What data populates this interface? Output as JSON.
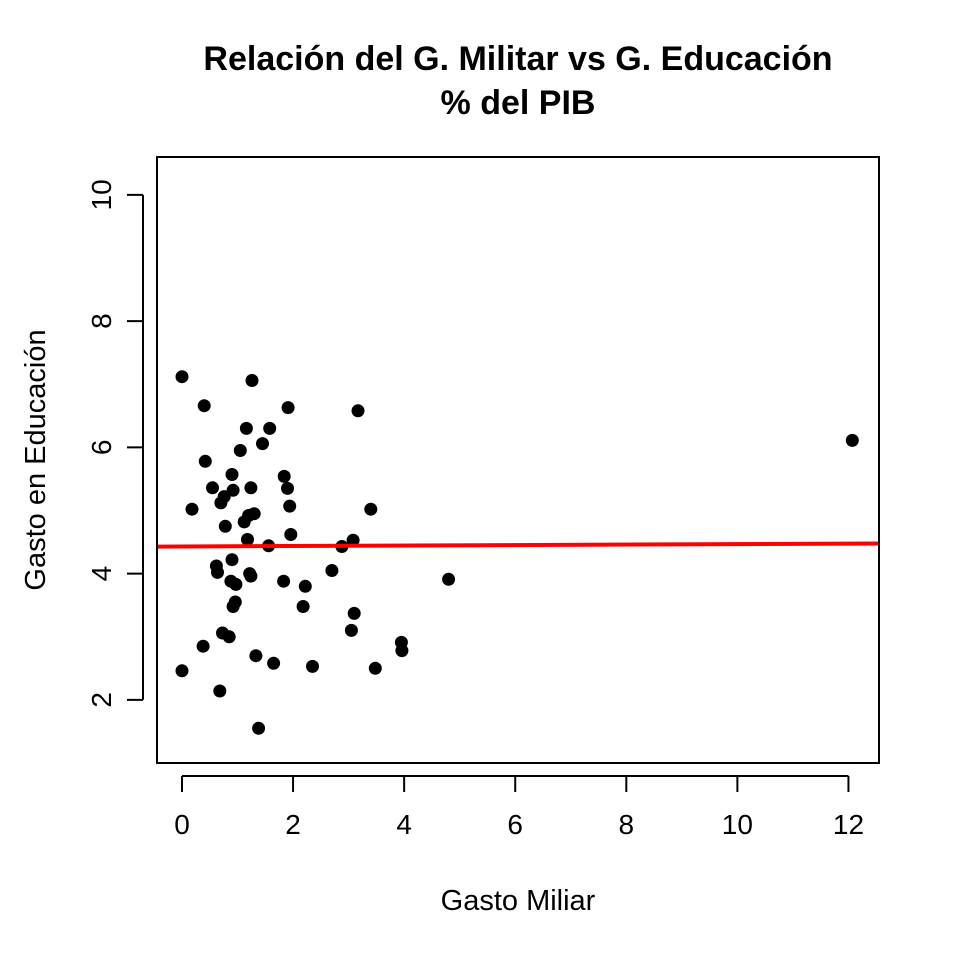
{
  "chart_data": {
    "type": "scatter",
    "title": "Relación del G. Militar vs G. Educación",
    "subtitle": "% del PIB",
    "xlabel": "Gasto Miliar",
    "ylabel": "Gasto en Educación",
    "xlim": [
      -0.45,
      12.55
    ],
    "ylim": [
      1.0,
      10.6
    ],
    "xticks": [
      0,
      2,
      4,
      6,
      8,
      10,
      12
    ],
    "yticks": [
      2,
      4,
      6,
      8,
      10
    ],
    "grid": false,
    "legend": "none",
    "point_color": "#000000",
    "series": [
      {
        "points": [
          [
            0.0,
            7.12
          ],
          [
            0.0,
            2.46
          ],
          [
            0.18,
            5.02
          ],
          [
            0.38,
            2.85
          ],
          [
            0.4,
            6.66
          ],
          [
            0.42,
            5.78
          ],
          [
            0.55,
            5.36
          ],
          [
            0.62,
            4.12
          ],
          [
            0.64,
            4.02
          ],
          [
            0.68,
            2.14
          ],
          [
            0.7,
            5.12
          ],
          [
            0.73,
            3.06
          ],
          [
            0.76,
            5.22
          ],
          [
            0.78,
            4.75
          ],
          [
            0.85,
            3.0
          ],
          [
            0.88,
            3.88
          ],
          [
            0.9,
            5.57
          ],
          [
            0.9,
            4.22
          ],
          [
            0.92,
            3.48
          ],
          [
            0.92,
            5.32
          ],
          [
            0.96,
            3.55
          ],
          [
            0.97,
            3.83
          ],
          [
            1.05,
            5.95
          ],
          [
            1.12,
            4.82
          ],
          [
            1.16,
            6.3
          ],
          [
            1.18,
            4.54
          ],
          [
            1.2,
            4.92
          ],
          [
            1.22,
            4.0
          ],
          [
            1.24,
            5.36
          ],
          [
            1.24,
            3.96
          ],
          [
            1.26,
            7.06
          ],
          [
            1.3,
            4.95
          ],
          [
            1.33,
            2.7
          ],
          [
            1.38,
            1.55
          ],
          [
            1.45,
            6.06
          ],
          [
            1.56,
            4.44
          ],
          [
            1.58,
            6.3
          ],
          [
            1.65,
            2.58
          ],
          [
            1.83,
            3.88
          ],
          [
            1.84,
            5.54
          ],
          [
            1.9,
            5.35
          ],
          [
            1.91,
            6.63
          ],
          [
            1.94,
            5.07
          ],
          [
            1.96,
            4.62
          ],
          [
            2.18,
            3.48
          ],
          [
            2.22,
            3.8
          ],
          [
            2.35,
            2.53
          ],
          [
            2.7,
            4.05
          ],
          [
            2.88,
            4.43
          ],
          [
            3.05,
            3.1
          ],
          [
            3.08,
            4.53
          ],
          [
            3.1,
            3.37
          ],
          [
            3.17,
            6.58
          ],
          [
            3.4,
            5.02
          ],
          [
            3.48,
            2.5
          ],
          [
            3.95,
            2.91
          ],
          [
            3.96,
            2.78
          ],
          [
            4.8,
            3.91
          ],
          [
            12.07,
            6.11
          ]
        ]
      }
    ],
    "trend_line": {
      "color": "#ff0000",
      "intercept": 4.43,
      "slope": 0.0038
    }
  }
}
